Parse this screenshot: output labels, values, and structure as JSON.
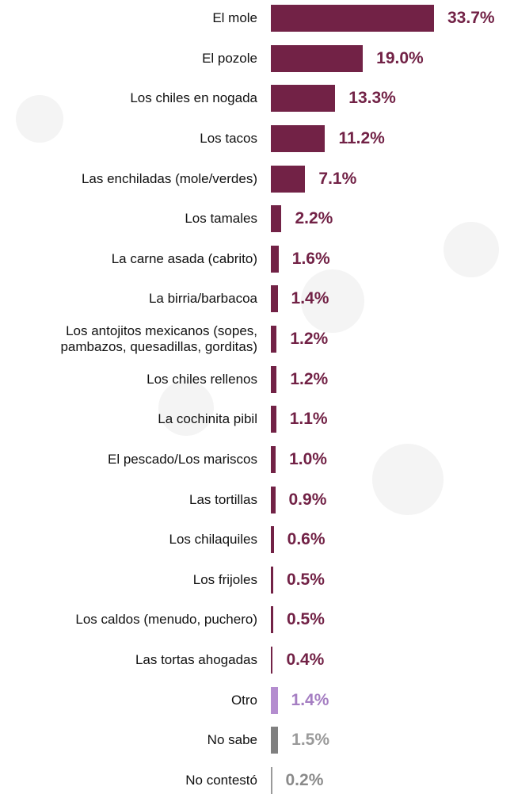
{
  "chart_data": {
    "type": "bar",
    "orientation": "horizontal",
    "categories": [
      "El mole",
      "El pozole",
      "Los chiles en nogada",
      "Los tacos",
      "Las enchiladas (mole/verdes)",
      "Los tamales",
      "La carne asada (cabrito)",
      "La birria/barbacoa",
      "Los antojitos mexicanos (sopes,\npambazos, quesadillas, gorditas)",
      "Los chiles rellenos",
      "La cochinita pibil",
      "El pescado/Los mariscos",
      "Las tortillas",
      "Los chilaquiles",
      "Los frijoles",
      "Los caldos (menudo, puchero)",
      "Las tortas ahogadas",
      "Otro",
      "No sabe",
      "No contestó"
    ],
    "values": [
      33.7,
      19.0,
      13.3,
      11.2,
      7.1,
      2.2,
      1.6,
      1.4,
      1.2,
      1.2,
      1.1,
      1.0,
      0.9,
      0.6,
      0.5,
      0.5,
      0.4,
      1.4,
      1.5,
      0.2
    ],
    "value_labels": [
      "33.7%",
      "19.0%",
      "13.3%",
      "11.2%",
      "7.1%",
      "2.2%",
      "1.6%",
      "1.4%",
      "1.2%",
      "1.2%",
      "1.1%",
      "1.0%",
      "0.9%",
      "0.6%",
      "0.5%",
      "0.5%",
      "0.4%",
      "1.4%",
      "1.5%",
      "0.2%"
    ],
    "colors": [
      "#722246",
      "#722246",
      "#722246",
      "#722246",
      "#722246",
      "#722246",
      "#722246",
      "#722246",
      "#722246",
      "#722246",
      "#722246",
      "#722246",
      "#722246",
      "#722246",
      "#722246",
      "#722246",
      "#722246",
      "#b48dcf",
      "#808080",
      "#9a9a9a"
    ],
    "label_colors": [
      "#722246",
      "#722246",
      "#722246",
      "#722246",
      "#722246",
      "#722246",
      "#722246",
      "#722246",
      "#722246",
      "#722246",
      "#722246",
      "#722246",
      "#722246",
      "#722246",
      "#722246",
      "#722246",
      "#722246",
      "#a57ec2",
      "#9a9a9a",
      "#8a8a8a"
    ]
  }
}
